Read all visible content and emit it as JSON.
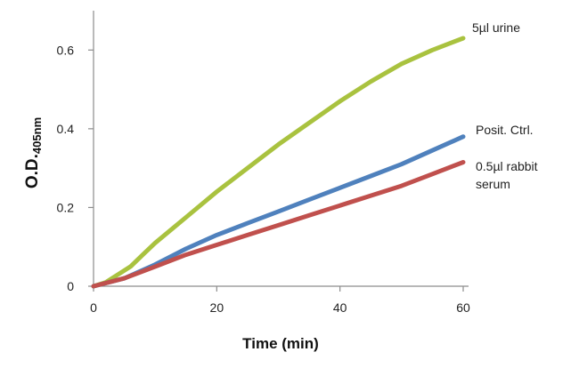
{
  "chart_data": {
    "type": "line",
    "title": "",
    "xlabel": "Time (min)",
    "ylabel_main": "O.D.",
    "ylabel_sub": "405nm",
    "xlim": [
      0,
      60
    ],
    "ylim": [
      0,
      0.7
    ],
    "xticks": [
      0,
      20,
      40,
      60
    ],
    "yticks": [
      0,
      0.2,
      0.4,
      0.6
    ],
    "xtick_labels": [
      "0",
      "20",
      "40",
      "60"
    ],
    "ytick_labels": [
      "0",
      "0.2",
      "0.4",
      "0.6"
    ],
    "grid": false,
    "series": [
      {
        "name": "5µl urine",
        "label_lines": [
          "5µl urine"
        ],
        "color": "#a9c23f",
        "x": [
          0,
          2,
          4,
          6,
          8,
          10,
          15,
          20,
          25,
          30,
          35,
          40,
          45,
          50,
          55,
          60
        ],
        "y": [
          0,
          0.01,
          0.03,
          0.05,
          0.08,
          0.11,
          0.175,
          0.24,
          0.3,
          0.36,
          0.415,
          0.47,
          0.52,
          0.565,
          0.6,
          0.63
        ]
      },
      {
        "name": "Posit. Ctrl.",
        "label_lines": [
          "Posit. Ctrl."
        ],
        "color": "#4f81bd",
        "x": [
          0,
          5,
          10,
          15,
          20,
          25,
          30,
          35,
          40,
          45,
          50,
          55,
          60
        ],
        "y": [
          0,
          0.02,
          0.055,
          0.095,
          0.13,
          0.16,
          0.19,
          0.22,
          0.25,
          0.28,
          0.31,
          0.345,
          0.38
        ]
      },
      {
        "name": "0.5µl rabbit serum",
        "label_lines": [
          "0.5µl rabbit",
          "serum"
        ],
        "color": "#c0504d",
        "x": [
          0,
          5,
          10,
          15,
          20,
          25,
          30,
          35,
          40,
          45,
          50,
          55,
          60
        ],
        "y": [
          0,
          0.02,
          0.05,
          0.08,
          0.105,
          0.13,
          0.155,
          0.18,
          0.205,
          0.23,
          0.255,
          0.285,
          0.315
        ]
      }
    ]
  }
}
